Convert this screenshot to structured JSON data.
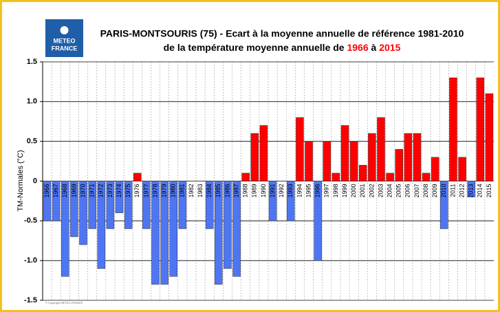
{
  "chart_data": {
    "type": "bar",
    "title": "PARIS-MONTSOURIS (75) - Ecart à la moyenne annuelle de référence 1981-2010",
    "subtitle_parts": [
      "de la température moyenne annuelle de ",
      "1966",
      " à ",
      "2015"
    ],
    "subtitle_highlight_color": "#ff0000",
    "logo": [
      "METEO",
      "FRANCE"
    ],
    "copyright": "© Copyright METEO-FRANCE",
    "y_label": "TM-Normales (°C)",
    "categories": [
      "1966",
      "1967",
      "1968",
      "1969",
      "1970",
      "1971",
      "1972",
      "1973",
      "1974",
      "1975",
      "1976",
      "1977",
      "1978",
      "1979",
      "1980",
      "1981",
      "1982",
      "1983",
      "1984",
      "1985",
      "1986",
      "1987",
      "1988",
      "1989",
      "1990",
      "1991",
      "1992",
      "1993",
      "1994",
      "1995",
      "1996",
      "1997",
      "1998",
      "1999",
      "2000",
      "2001",
      "2002",
      "2003",
      "2004",
      "2005",
      "2006",
      "2007",
      "2008",
      "2009",
      "2010",
      "2011",
      "2012",
      "2013",
      "2014",
      "2015"
    ],
    "values": [
      -0.5,
      -0.5,
      -1.2,
      -0.7,
      -0.8,
      -0.6,
      -1.1,
      -0.6,
      -0.4,
      -0.6,
      0.1,
      -0.6,
      -1.3,
      -1.3,
      -1.2,
      -0.6,
      0,
      0,
      -0.6,
      -1.3,
      -1.1,
      -1.2,
      0.1,
      0.6,
      0.7,
      -0.5,
      0,
      -0.5,
      0.8,
      0.5,
      -1.0,
      0.5,
      0.1,
      0.7,
      0.5,
      0.2,
      0.6,
      0.8,
      0.1,
      0.4,
      0.6,
      0.6,
      0.1,
      0.3,
      -0.6,
      1.3,
      0.3,
      -0.2,
      1.3,
      1.1
    ],
    "positive_color": "#ff0000",
    "negative_color": "#4f76f2",
    "ylim": [
      -1.5,
      1.5
    ],
    "yticks": [
      -1.5,
      {
        "value": -1,
        "label": "-1.0"
      },
      -0.5,
      0,
      0.5,
      {
        "value": 1,
        "label": "1.0"
      },
      1.5
    ],
    "grid": true
  }
}
